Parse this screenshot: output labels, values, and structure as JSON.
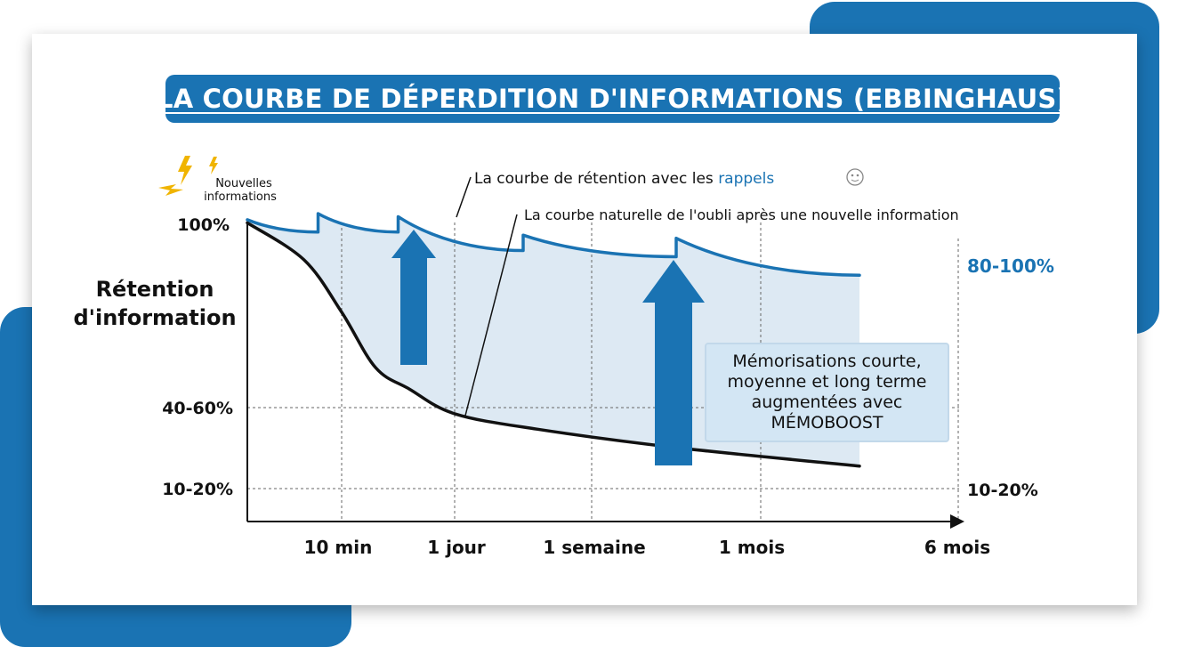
{
  "title": "LA COURBE DE DÉPERDITION D'INFORMATIONS (EBBINGHAUS)",
  "colors": {
    "accent": "#1a73b3",
    "fill": "#dde9f3",
    "natural_curve": "#111111"
  },
  "chart_data": {
    "type": "line",
    "title": "LA COURBE DE DÉPERDITION D'INFORMATIONS (EBBINGHAUS)",
    "ylabel": [
      "Rétention",
      "d'information"
    ],
    "xlabel": "",
    "x_tick_labels": [
      "10 min",
      "1 jour",
      "1 semaine",
      "1 mois",
      "6 mois"
    ],
    "y_tick_labels": [
      "100%",
      "40-60%",
      "10-20%"
    ],
    "start_label": [
      "Nouvelles",
      "informations"
    ],
    "right_labels": {
      "top": "80-100%",
      "bottom": "10-20%"
    },
    "series": [
      {
        "name": "La courbe de rétention avec les rappels",
        "color": "#1a73b3",
        "points": [
          [
            0,
            98
          ],
          [
            0.75,
            94
          ],
          [
            0.75,
            100
          ],
          [
            1.5,
            94
          ],
          [
            1.5,
            99
          ],
          [
            2.5,
            88
          ],
          [
            2.5,
            93
          ],
          [
            3.5,
            86
          ],
          [
            3.5,
            92
          ],
          [
            4.5,
            80
          ]
        ]
      },
      {
        "name": "La courbe naturelle de l'oubli après une nouvelle information",
        "color": "#111111",
        "points": [
          [
            0,
            97
          ],
          [
            0.6,
            85
          ],
          [
            1.0,
            68
          ],
          [
            1.3,
            50
          ],
          [
            1.6,
            43
          ],
          [
            2.0,
            35
          ],
          [
            2.6,
            30
          ],
          [
            3.5,
            24
          ],
          [
            4.5,
            18
          ]
        ]
      }
    ],
    "legend_labels": {
      "reminder_prefix": "La courbe de rétention avec les",
      "reminder_word": "rappels",
      "natural": "La courbe naturelle de l'oubli après une nouvelle information"
    },
    "annotation": [
      "Mémorisations courte,",
      "moyenne et long terme",
      "augmentées avec",
      "MÉMOBOOST"
    ],
    "grid": true
  }
}
